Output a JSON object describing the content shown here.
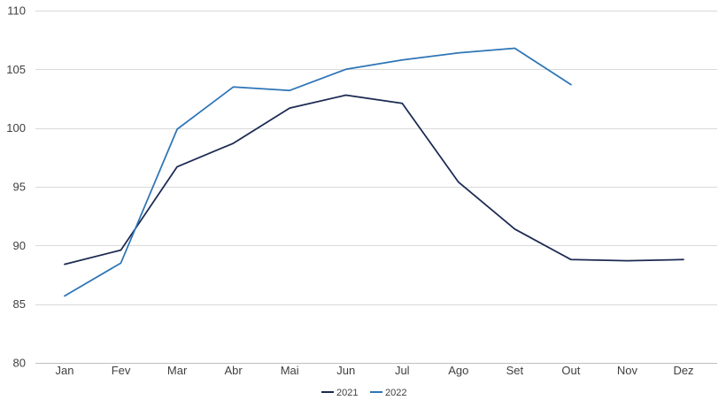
{
  "chart_data": {
    "type": "line",
    "categories": [
      "Jan",
      "Fev",
      "Mar",
      "Abr",
      "Mai",
      "Jun",
      "Jul",
      "Ago",
      "Set",
      "Out",
      "Nov",
      "Dez"
    ],
    "series": [
      {
        "name": "2021",
        "color": "#1b2a52",
        "values": [
          88.4,
          89.6,
          96.7,
          98.7,
          101.7,
          102.8,
          102.1,
          95.4,
          91.4,
          88.8,
          88.7,
          88.8
        ]
      },
      {
        "name": "2022",
        "color": "#2e75b6",
        "values": [
          85.7,
          88.5,
          99.9,
          103.5,
          103.2,
          105.0,
          105.8,
          106.4,
          106.8,
          103.7,
          null,
          null
        ]
      }
    ],
    "ylim": [
      80,
      110
    ],
    "yticks": [
      80,
      85,
      90,
      95,
      100,
      105,
      110
    ],
    "grid": true,
    "legend_position": "bottom-center"
  }
}
